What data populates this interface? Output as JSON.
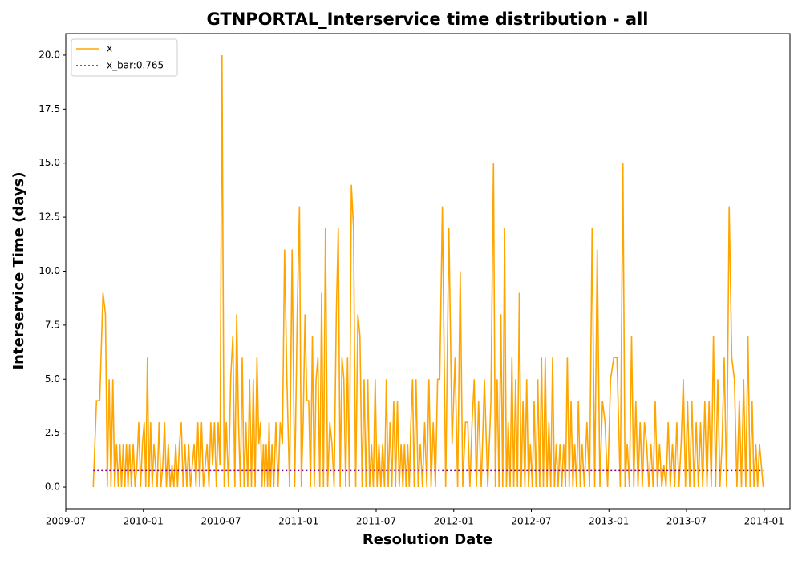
{
  "chart_data": {
    "type": "line",
    "title": "GTNPORTAL_Interservice time distribution - all",
    "x_label": "Resolution Date",
    "y_label": "Interservice Time (days)",
    "xlim": [
      "2009-07",
      "2014-03"
    ],
    "xticks": [
      "2009-07",
      "2010-01",
      "2010-07",
      "2011-01",
      "2011-07",
      "2012-01",
      "2012-07",
      "2013-01",
      "2013-07",
      "2014-01"
    ],
    "ylim": [
      -1,
      21
    ],
    "yticks": [
      {
        "value": 0,
        "label": "0.0"
      },
      {
        "value": 2.5,
        "label": "2.5"
      },
      {
        "value": 5,
        "label": "5.0"
      },
      {
        "value": 7.5,
        "label": "7.5"
      },
      {
        "value": 10,
        "label": "10.0"
      },
      {
        "value": 12.5,
        "label": "12.5"
      },
      {
        "value": 15,
        "label": "15.0"
      },
      {
        "value": 17.5,
        "label": "17.5"
      },
      {
        "value": 20,
        "label": "20.0"
      }
    ],
    "legend": "upper left",
    "x": [
      "2009-09",
      "2009-09",
      "2009-09",
      "2009-09",
      "2009-10",
      "2009-10",
      "2009-10",
      "2009-10",
      "2009-10",
      "2009-10",
      "2009-10",
      "2009-11",
      "2009-11",
      "2009-11",
      "2009-11",
      "2009-11",
      "2009-11",
      "2009-11",
      "2009-11",
      "2009-12",
      "2009-12",
      "2009-12",
      "2009-12",
      "2009-12",
      "2009-12",
      "2009-12",
      "2010-01",
      "2010-01",
      "2010-01",
      "2010-01",
      "2010-01",
      "2010-01",
      "2010-01",
      "2010-01",
      "2010-02",
      "2010-02",
      "2010-02",
      "2010-02",
      "2010-02",
      "2010-02",
      "2010-02",
      "2010-03",
      "2010-03",
      "2010-03",
      "2010-03",
      "2010-03",
      "2010-03",
      "2010-03",
      "2010-04",
      "2010-04",
      "2010-04",
      "2010-04",
      "2010-04",
      "2010-04",
      "2010-04",
      "2010-05",
      "2010-05",
      "2010-05",
      "2010-05",
      "2010-05",
      "2010-05",
      "2010-05",
      "2010-06",
      "2010-06",
      "2010-06",
      "2010-06",
      "2010-06",
      "2010-06",
      "2010-06",
      "2010-07",
      "2010-07",
      "2010-07",
      "2010-07",
      "2010-07",
      "2010-07",
      "2010-08",
      "2010-08",
      "2010-08",
      "2010-08",
      "2010-08",
      "2010-08",
      "2010-08",
      "2010-09",
      "2010-09",
      "2010-09",
      "2010-09",
      "2010-09",
      "2010-09",
      "2010-09",
      "2010-10",
      "2010-10",
      "2010-10",
      "2010-10",
      "2010-10",
      "2010-10",
      "2010-10",
      "2010-10",
      "2010-10",
      "2010-11",
      "2010-11",
      "2010-11",
      "2010-11",
      "2010-11",
      "2010-11",
      "2010-12",
      "2010-12",
      "2010-12",
      "2010-12",
      "2010-12",
      "2011-01",
      "2011-01",
      "2011-01",
      "2011-01",
      "2011-01",
      "2011-01",
      "2011-01",
      "2011-02",
      "2011-02",
      "2011-02",
      "2011-02",
      "2011-02",
      "2011-02",
      "2011-02",
      "2011-03",
      "2011-03",
      "2011-03",
      "2011-03",
      "2011-03",
      "2011-03",
      "2011-04",
      "2011-04",
      "2011-04",
      "2011-04",
      "2011-04",
      "2011-04",
      "2011-04",
      "2011-05",
      "2011-05",
      "2011-05",
      "2011-05",
      "2011-05",
      "2011-05",
      "2011-06",
      "2011-06",
      "2011-06",
      "2011-06",
      "2011-06",
      "2011-06",
      "2011-06",
      "2011-07",
      "2011-07",
      "2011-07",
      "2011-07",
      "2011-07",
      "2011-07",
      "2011-07",
      "2011-08",
      "2011-08",
      "2011-08",
      "2011-08",
      "2011-08",
      "2011-08",
      "2011-08",
      "2011-09",
      "2011-09",
      "2011-09",
      "2011-09",
      "2011-09",
      "2011-09",
      "2011-09",
      "2011-09",
      "2011-10",
      "2011-10",
      "2011-10",
      "2011-10",
      "2011-10",
      "2011-10",
      "2011-11",
      "2011-11",
      "2011-11",
      "2011-11",
      "2011-11",
      "2011-11",
      "2011-12",
      "2011-12",
      "2011-12",
      "2011-12",
      "2012-01",
      "2012-01",
      "2012-01",
      "2012-01",
      "2012-01",
      "2012-02",
      "2012-02",
      "2012-02",
      "2012-02",
      "2012-02",
      "2012-02",
      "2012-03",
      "2012-03",
      "2012-03",
      "2012-03",
      "2012-04",
      "2012-04",
      "2012-04",
      "2012-04",
      "2012-04",
      "2012-04",
      "2012-04",
      "2012-05",
      "2012-05",
      "2012-05",
      "2012-05",
      "2012-05",
      "2012-05",
      "2012-05",
      "2012-06",
      "2012-06",
      "2012-06",
      "2012-06",
      "2012-06",
      "2012-06",
      "2012-06",
      "2012-07",
      "2012-07",
      "2012-07",
      "2012-07",
      "2012-07",
      "2012-07",
      "2012-07",
      "2012-08",
      "2012-08",
      "2012-08",
      "2012-08",
      "2012-08",
      "2012-08",
      "2012-08",
      "2012-09",
      "2012-09",
      "2012-09",
      "2012-09",
      "2012-09",
      "2012-09",
      "2012-09",
      "2012-10",
      "2012-10",
      "2012-10",
      "2012-10",
      "2012-10",
      "2012-10",
      "2012-10",
      "2012-11",
      "2012-11",
      "2012-11",
      "2012-11",
      "2012-11",
      "2012-12",
      "2012-12",
      "2012-12",
      "2012-12",
      "2012-12",
      "2013-01",
      "2013-01",
      "2013-01",
      "2013-01",
      "2013-02",
      "2013-02",
      "2013-02",
      "2013-02",
      "2013-02",
      "2013-02",
      "2013-03",
      "2013-03",
      "2013-03",
      "2013-03",
      "2013-03",
      "2013-03",
      "2013-04",
      "2013-04",
      "2013-04",
      "2013-04",
      "2013-04",
      "2013-04",
      "2013-05",
      "2013-05",
      "2013-05",
      "2013-05",
      "2013-05",
      "2013-05",
      "2013-06",
      "2013-06",
      "2013-06",
      "2013-06",
      "2013-06",
      "2013-06",
      "2013-07",
      "2013-07",
      "2013-07",
      "2013-07",
      "2013-07",
      "2013-07",
      "2013-08",
      "2013-08",
      "2013-08",
      "2013-08",
      "2013-08",
      "2013-08",
      "2013-09",
      "2013-09",
      "2013-09",
      "2013-09",
      "2013-09",
      "2013-09",
      "2013-10",
      "2013-10",
      "2013-10",
      "2013-10",
      "2013-10",
      "2013-11",
      "2013-11",
      "2013-11",
      "2013-11",
      "2013-11",
      "2013-11",
      "2013-12",
      "2013-12",
      "2013-12",
      "2013-12",
      "2013-12",
      "2013-12",
      "2013-12"
    ],
    "series": [
      {
        "name": "x",
        "color": "orange",
        "style": "solid",
        "values": [
          0,
          4,
          4,
          9,
          8,
          0,
          5,
          0,
          5,
          0,
          2,
          0,
          2,
          0,
          2,
          0,
          2,
          0,
          2,
          0,
          2,
          0,
          1,
          3,
          0,
          2,
          3,
          0,
          6,
          0,
          3,
          0,
          2,
          1,
          0,
          3,
          0,
          1,
          3,
          0,
          2,
          0,
          1,
          0,
          2,
          0,
          2,
          3,
          0,
          2,
          0,
          2,
          0,
          1,
          2,
          0,
          3,
          0,
          3,
          0,
          1,
          2,
          0,
          3,
          1,
          3,
          0,
          3,
          1,
          20,
          0,
          3,
          0,
          5,
          7,
          0,
          8,
          3,
          0,
          6,
          0,
          3,
          0,
          5,
          0,
          5,
          0,
          6,
          2,
          3,
          0,
          2,
          0,
          2,
          0,
          3,
          0,
          2,
          0,
          3,
          0,
          3,
          2,
          11,
          5,
          0,
          11,
          0,
          8,
          13,
          0,
          3,
          8,
          4,
          4,
          0,
          7,
          0,
          5,
          6,
          0,
          9,
          0,
          12,
          0,
          3,
          2,
          0,
          8,
          12,
          0,
          6,
          5,
          0,
          6,
          0,
          14,
          12,
          0,
          8,
          7,
          0,
          5,
          0,
          5,
          0,
          2,
          0,
          5,
          0,
          2,
          0,
          2,
          0,
          5,
          0,
          3,
          0,
          4,
          0,
          4,
          0,
          2,
          0,
          2,
          0,
          2,
          0,
          3,
          5,
          0,
          5,
          0,
          2,
          0,
          3,
          0,
          5,
          0,
          3,
          0,
          5,
          5,
          13,
          0,
          12,
          2,
          6,
          0,
          10,
          0,
          3,
          3,
          0,
          3,
          5,
          0,
          4,
          0,
          5,
          0,
          4,
          15,
          0,
          5,
          0,
          8,
          0,
          12,
          0,
          3,
          0,
          6,
          0,
          5,
          0,
          9,
          0,
          4,
          0,
          5,
          0,
          2,
          0,
          4,
          0,
          5,
          0,
          6,
          0,
          6,
          0,
          3,
          0,
          6,
          0,
          2,
          0,
          2,
          0,
          2,
          0,
          6,
          0,
          4,
          0,
          2,
          0,
          4,
          0,
          2,
          0,
          3,
          0,
          12,
          0,
          11,
          0,
          4,
          3,
          0,
          5,
          6,
          6,
          0,
          15,
          0,
          2,
          0,
          7,
          0,
          4,
          0,
          3,
          0,
          3,
          2,
          0,
          2,
          0,
          4,
          0,
          2,
          0,
          1,
          0,
          3,
          0,
          2,
          0,
          3,
          0,
          2,
          5,
          0,
          4,
          0,
          4,
          0,
          3,
          0,
          3,
          0,
          4,
          0,
          4,
          0,
          7,
          0,
          5,
          0,
          2,
          6,
          0,
          13,
          6,
          5,
          0,
          4,
          0,
          5,
          0,
          7,
          0,
          4,
          0,
          2,
          0,
          2,
          1,
          0
        ]
      },
      {
        "name": "x_bar:0.765",
        "color": "purple",
        "style": "dotted",
        "value": 0.765
      }
    ]
  }
}
